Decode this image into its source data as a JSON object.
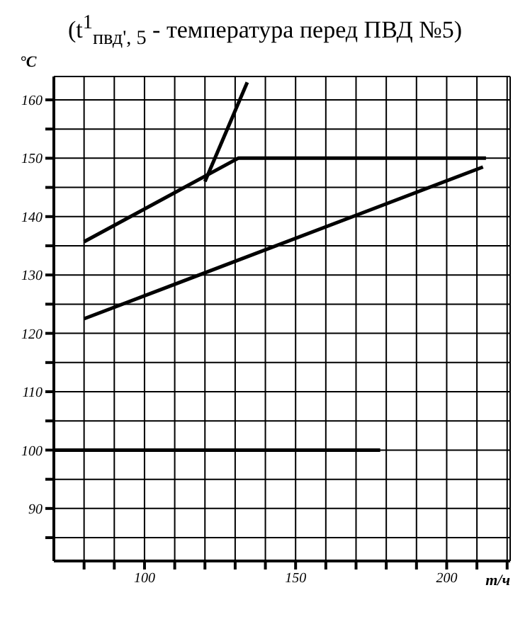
{
  "chart_data": {
    "type": "line",
    "title": "(t$^{1}$$_{пвд', 5}$ - температура перед ПВД №5)",
    "ylabel": "°C",
    "xlabel": "т/ч",
    "series": [
      {
        "color": "#000000",
        "x": [
          80,
          131,
          213
        ],
        "values": [
          135.7,
          150,
          150
        ]
      },
      {
        "color": "#000000",
        "x": [
          120,
          134
        ],
        "values": [
          146,
          163
        ]
      },
      {
        "color": "#000000",
        "x": [
          80,
          212
        ],
        "values": [
          122.5,
          148.5
        ]
      },
      {
        "color": "#000000",
        "x": [
          70,
          178
        ],
        "values": [
          100,
          100
        ]
      }
    ],
    "xlim": [
      70,
      221
    ],
    "ylim": [
      81,
      164
    ],
    "xticks": [
      {
        "value": 80,
        "label": null
      },
      {
        "value": 90,
        "label": null
      },
      100,
      {
        "value": 110,
        "label": null
      },
      {
        "value": 120,
        "label": null
      },
      {
        "value": 130,
        "label": null
      },
      {
        "value": 140,
        "label": null
      },
      150,
      {
        "value": 160,
        "label": null
      },
      {
        "value": 170,
        "label": null
      },
      {
        "value": 180,
        "label": null
      },
      {
        "value": 190,
        "label": null
      },
      200,
      {
        "value": 210,
        "label": null
      },
      {
        "value": 220,
        "label": null
      }
    ],
    "yticks": [
      {
        "value": 85,
        "label": null
      },
      90,
      {
        "value": 95,
        "label": null
      },
      100,
      {
        "value": 105,
        "label": null
      },
      110,
      {
        "value": 115,
        "label": null
      },
      120,
      {
        "value": 125,
        "label": null
      },
      130,
      {
        "value": 135,
        "label": null
      },
      140,
      {
        "value": 145,
        "label": null
      },
      150,
      {
        "value": 155,
        "label": null
      },
      160
    ],
    "grid": true,
    "marker": "none",
    "line_style": "solid",
    "legend": false
  }
}
